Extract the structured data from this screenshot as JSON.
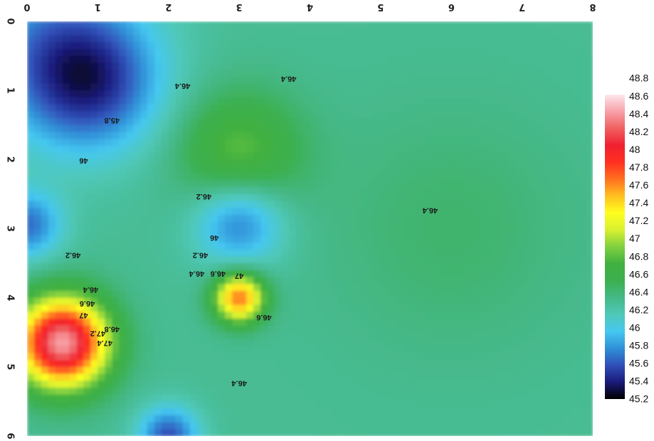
{
  "chart_data": {
    "type": "heatmap",
    "title": "",
    "xlabel": "",
    "ylabel": "",
    "xlim": [
      0,
      8
    ],
    "ylim": [
      0,
      6
    ],
    "x_ticks": [
      "0",
      "1",
      "2",
      "3",
      "4",
      "5",
      "6",
      "7",
      "8"
    ],
    "y_ticks": [
      "0",
      "1",
      "2",
      "3",
      "4",
      "5",
      "6"
    ],
    "background_value": 46.35,
    "hotspots": [
      {
        "x": 0.9,
        "y": 0.9,
        "value": 45.6,
        "spread": 0.7
      },
      {
        "x": 0.3,
        "y": 0.3,
        "value": 45.9,
        "spread": 0.9
      },
      {
        "x": 3.0,
        "y": 2.9,
        "value": 45.7,
        "spread": 0.45
      },
      {
        "x": 0.0,
        "y": 2.95,
        "value": 45.7,
        "spread": 0.35
      },
      {
        "x": 3.0,
        "y": 4.0,
        "value": 47.8,
        "spread": 0.25
      },
      {
        "x": 0.5,
        "y": 4.65,
        "value": 48.6,
        "spread": 0.45
      },
      {
        "x": 2.0,
        "y": 6.0,
        "value": 45.6,
        "spread": 0.3
      },
      {
        "x": 3.0,
        "y": 1.9,
        "value": 46.9,
        "spread": 0.6
      },
      {
        "x": 6.0,
        "y": 3.0,
        "value": 46.5,
        "spread": 1.2
      }
    ],
    "contour_labels": [
      {
        "text": "46.4",
        "x": 2.2,
        "y": 0.9
      },
      {
        "text": "46.4",
        "x": 3.7,
        "y": 0.8
      },
      {
        "text": "45.8",
        "x": 1.2,
        "y": 1.4
      },
      {
        "text": "46",
        "x": 0.8,
        "y": 1.98
      },
      {
        "text": "46.2",
        "x": 2.5,
        "y": 2.5
      },
      {
        "text": "46.4",
        "x": 5.7,
        "y": 2.7
      },
      {
        "text": "46",
        "x": 2.65,
        "y": 3.1
      },
      {
        "text": "46.2",
        "x": 2.45,
        "y": 3.35
      },
      {
        "text": "46.2",
        "x": 0.65,
        "y": 3.35
      },
      {
        "text": "46.4",
        "x": 2.4,
        "y": 3.62
      },
      {
        "text": "46.6",
        "x": 2.7,
        "y": 3.62
      },
      {
        "text": "47",
        "x": 3.0,
        "y": 3.65
      },
      {
        "text": "46.4",
        "x": 0.9,
        "y": 3.85
      },
      {
        "text": "46.6",
        "x": 0.85,
        "y": 4.05
      },
      {
        "text": "47",
        "x": 0.8,
        "y": 4.22
      },
      {
        "text": "46.8",
        "x": 1.2,
        "y": 4.42
      },
      {
        "text": "47.2",
        "x": 1.0,
        "y": 4.48
      },
      {
        "text": "47.4",
        "x": 1.1,
        "y": 4.62
      },
      {
        "text": "46.6",
        "x": 3.35,
        "y": 4.25
      },
      {
        "text": "46.4",
        "x": 3.0,
        "y": 5.2
      }
    ],
    "colorbar": {
      "min": 45.2,
      "max": 48.8,
      "ticks": [
        "45.2",
        "45.4",
        "45.6",
        "45.8",
        "46",
        "46.2",
        "46.4",
        "46.6",
        "46.8",
        "47",
        "47.2",
        "47.4",
        "47.6",
        "47.8",
        "48",
        "48.2",
        "48.4",
        "48.6",
        "48.8"
      ],
      "colors": [
        "#000000",
        "#1a1a7a",
        "#3050b8",
        "#3090d8",
        "#45c8f0",
        "#50c8b8",
        "#45b888",
        "#3cb050",
        "#40b040",
        "#80d040",
        "#d8f030",
        "#ffff20",
        "#ffc020",
        "#ff7020",
        "#ff3020",
        "#f02030",
        "#f06060",
        "#f8a0a8",
        "#fce8ec"
      ]
    }
  }
}
